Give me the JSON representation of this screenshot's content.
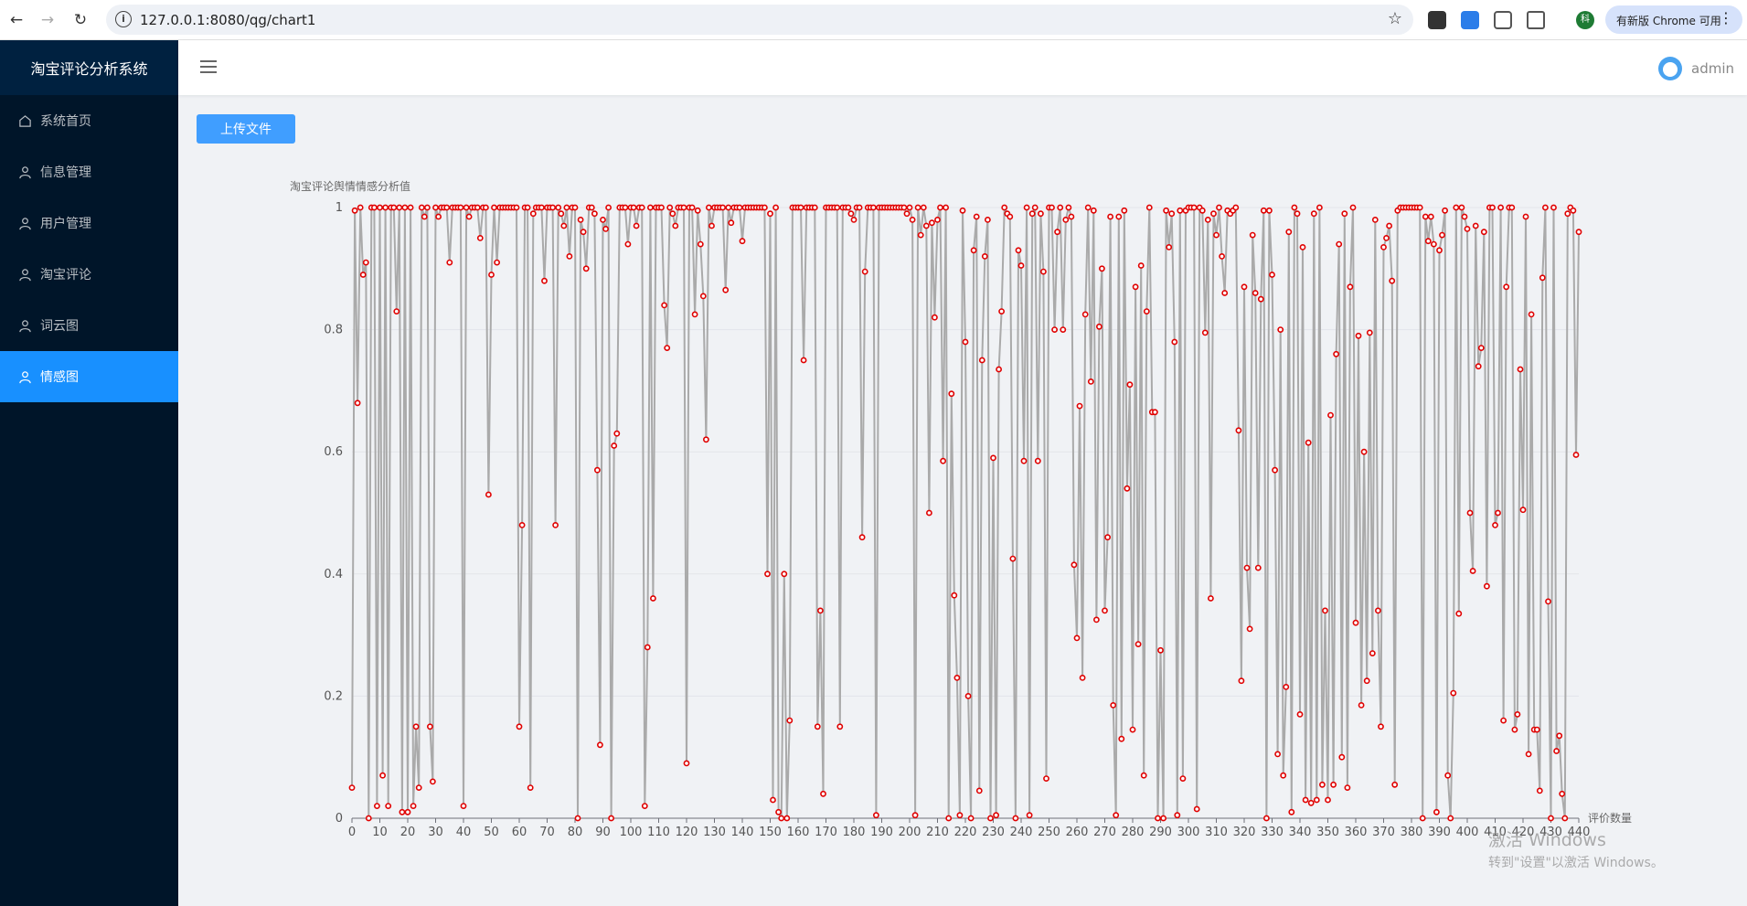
{
  "browser": {
    "url": "127.0.0.1:8080/qg/chart1",
    "update_label": "有新版 Chrome 可用",
    "profile_initial": "科"
  },
  "sidebar": {
    "title": "淘宝评论分析系统",
    "items": [
      {
        "label": "系统首页",
        "icon": "home-icon"
      },
      {
        "label": "信息管理",
        "icon": "user-icon"
      },
      {
        "label": "用户管理",
        "icon": "user-icon"
      },
      {
        "label": "淘宝评论",
        "icon": "user-icon"
      },
      {
        "label": "词云图",
        "icon": "user-icon"
      },
      {
        "label": "情感图",
        "icon": "user-icon",
        "active": true
      }
    ]
  },
  "header": {
    "username": "admin"
  },
  "toolbar": {
    "upload_label": "上传文件"
  },
  "colors": {
    "sidebar_bg": "#001529",
    "accent": "#1890ff",
    "line": "#aaaaaa",
    "point": "#e00000"
  },
  "chart_data": {
    "type": "line",
    "title": "",
    "ylabel": "淘宝评论舆情情感分析值",
    "xlabel": "评价数量",
    "xlim": [
      0,
      440
    ],
    "ylim": [
      0,
      1
    ],
    "yticks": [
      0,
      0.2,
      0.4,
      0.6,
      0.8,
      1
    ],
    "xticks": [
      0,
      10,
      20,
      30,
      40,
      50,
      60,
      70,
      80,
      90,
      100,
      110,
      120,
      130,
      140,
      150,
      160,
      170,
      180,
      190,
      200,
      210,
      220,
      230,
      240,
      250,
      260,
      270,
      280,
      290,
      300,
      310,
      320,
      330,
      340,
      350,
      360,
      370,
      380,
      390,
      400,
      410,
      420,
      430,
      440
    ],
    "grid": true,
    "y": [
      0.05,
      0.995,
      0.68,
      1,
      0.89,
      0.91,
      0,
      1,
      1,
      0.02,
      1,
      0.07,
      1,
      0.02,
      1,
      1,
      0.83,
      1,
      0.01,
      1,
      0.01,
      1,
      0.02,
      0.15,
      0.05,
      1,
      0.985,
      1,
      0.15,
      0.06,
      1,
      0.985,
      1,
      1,
      1,
      0.91,
      1,
      1,
      1,
      1,
      0.02,
      1,
      0.985,
      1,
      1,
      1,
      0.95,
      1,
      1,
      0.53,
      0.89,
      1,
      0.91,
      1,
      1,
      1,
      1,
      1,
      1,
      1,
      0.15,
      0.48,
      1,
      1,
      0.05,
      0.99,
      1,
      1,
      1,
      0.88,
      1,
      1,
      1,
      0.48,
      1,
      0.99,
      0.97,
      1,
      0.92,
      1,
      1,
      0,
      0.98,
      0.96,
      0.9,
      1,
      1,
      0.99,
      0.57,
      0.12,
      0.98,
      0.965,
      1,
      0,
      0.61,
      0.63,
      1,
      1,
      1,
      0.94,
      1,
      1,
      0.97,
      1,
      1,
      0.02,
      0.28,
      1,
      0.36,
      1,
      1,
      1,
      0.84,
      0.77,
      1,
      0.99,
      0.97,
      1,
      1,
      1,
      0.09,
      1,
      1,
      0.825,
      0.995,
      0.94,
      0.855,
      0.62,
      1,
      0.97,
      1,
      1,
      1,
      1,
      0.865,
      1,
      0.975,
      1,
      1,
      1,
      0.945,
      1,
      1,
      1,
      1,
      1,
      1,
      1,
      1,
      0.4,
      0.99,
      0.03,
      1,
      0.01,
      0,
      0.4,
      0,
      0.16,
      1,
      1,
      1,
      1,
      0.75,
      1,
      1,
      1,
      1,
      0.15,
      0.34,
      0.04,
      1,
      1,
      1,
      1,
      1,
      0.15,
      1,
      1,
      1,
      0.99,
      0.98,
      1,
      1,
      0.46,
      0.895,
      1,
      1,
      1,
      0.005,
      1,
      1,
      1,
      1,
      1,
      1,
      1,
      1,
      1,
      1,
      0.99,
      1,
      0.98,
      0.005,
      1,
      0.955,
      1,
      0.97,
      0.5,
      0.975,
      0.82,
      0.98,
      1,
      0.585,
      1,
      0,
      0.695,
      0.365,
      0.23,
      0.005,
      0.995,
      0.78,
      0.2,
      0,
      0.93,
      0.985,
      0.045,
      0.75,
      0.92,
      0.98,
      0,
      0.59,
      0.005,
      0.735,
      0.83,
      1,
      0.99,
      0.985,
      0.425,
      0,
      0.93,
      0.905,
      0.585,
      1,
      0.005,
      0.99,
      1,
      0.585,
      0.99,
      0.895,
      0.065,
      1,
      1,
      0.8,
      0.96,
      1,
      0.8,
      0.98,
      1,
      0.985,
      0.415,
      0.295,
      0.675,
      0.23,
      0.825,
      1,
      0.715,
      0.995,
      0.325,
      0.805,
      0.9,
      0.34,
      0.46,
      0.985,
      0.185,
      0.005,
      0.985,
      0.13,
      0.995,
      0.54,
      0.71,
      0.145,
      0.87,
      0.285,
      0.905,
      0.07,
      0.83,
      1,
      0.665,
      0.665,
      0,
      0.275,
      0,
      0.995,
      0.935,
      0.99,
      0.78,
      0.005,
      0.995,
      0.065,
      0.995,
      1,
      1,
      1,
      0.015,
      1,
      0.995,
      0.795,
      0.98,
      0.36,
      0.99,
      0.955,
      1,
      0.92,
      0.86,
      0.995,
      0.99,
      0.995,
      1,
      0.635,
      0.225,
      0.87,
      0.41,
      0.31,
      0.955,
      0.86,
      0.41,
      0.85,
      0.995,
      0,
      0.995,
      0.89,
      0.57,
      0.105,
      0.8,
      0.07,
      0.215,
      0.96,
      0.01,
      1,
      0.99,
      0.17,
      0.935,
      0.03,
      0.615,
      0.025,
      0.99,
      0.03,
      1,
      0.055,
      0.34,
      0.03,
      0.66,
      0.055,
      0.76,
      0.94,
      0.1,
      0.99,
      0.05,
      0.87,
      1,
      0.32,
      0.79,
      0.185,
      0.6,
      0.225,
      0.795,
      0.27,
      0.98,
      0.34,
      0.15,
      0.935,
      0.95,
      0.97,
      0.88,
      0.055,
      0.995,
      1,
      1,
      1,
      1,
      1,
      1,
      1,
      1,
      0,
      0.985,
      0.945,
      0.985,
      0.94,
      0.01,
      0.93,
      0.955,
      0.995,
      0.07,
      0,
      0.205,
      1,
      0.335,
      1,
      0.985,
      0.965,
      0.5,
      0.405,
      0.97,
      0.74,
      0.77,
      0.96,
      0.38,
      1,
      1,
      0.48,
      0.5,
      1,
      0.16,
      0.87,
      1,
      1,
      0.145,
      0.17,
      0.735,
      0.505,
      0.985,
      0.105,
      0.825,
      0.145,
      0.145,
      0.045,
      0.885,
      1,
      0.355,
      0,
      1,
      0.11,
      0.135,
      0.04,
      0,
      0.99,
      1,
      0.995,
      0.595,
      0.96
    ]
  }
}
